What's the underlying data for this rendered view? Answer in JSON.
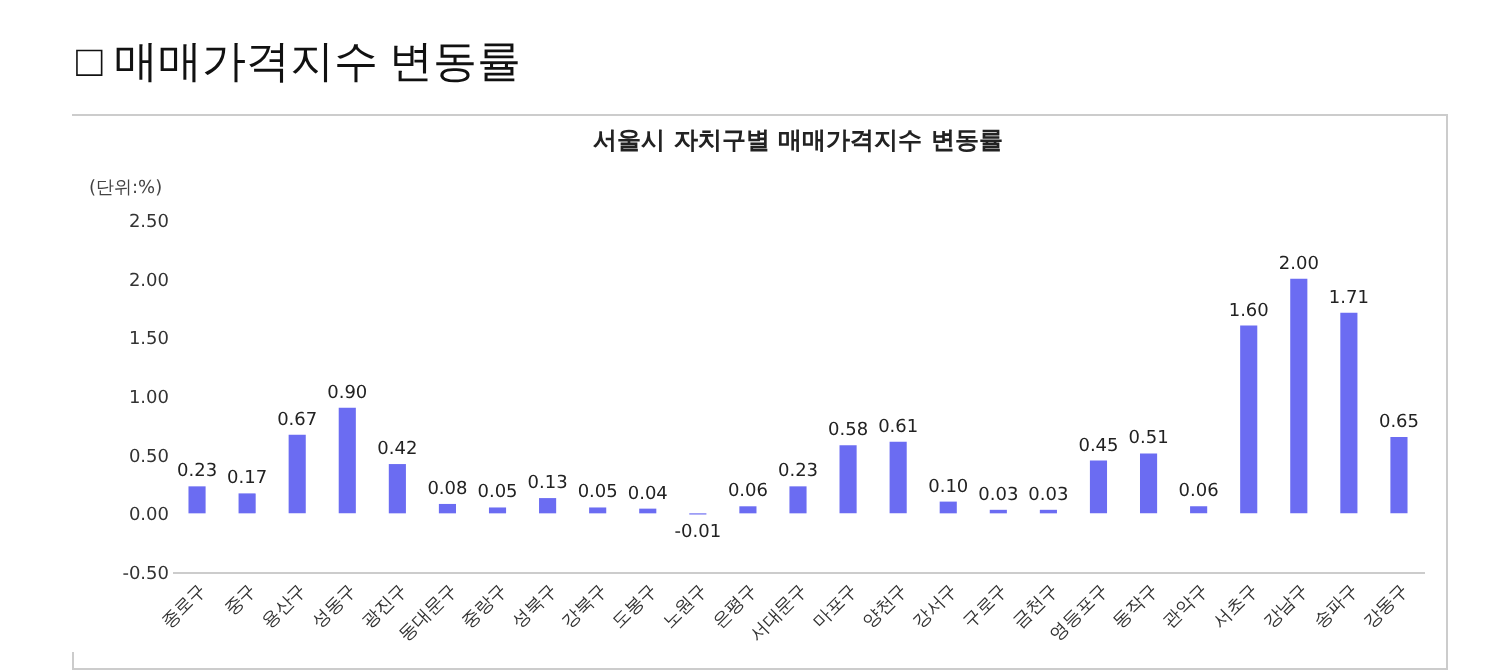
{
  "chart_data": {
    "type": "bar",
    "title": "□ 매매가격지수 변동률",
    "subtitle": "서울시 자치구별 매매가격지수 변동률",
    "ylabel": "(단위:%)",
    "categories": [
      "종로구",
      "중구",
      "용산구",
      "성동구",
      "광진구",
      "동대문구",
      "중랑구",
      "성북구",
      "강북구",
      "도봉구",
      "노원구",
      "은평구",
      "서대문구",
      "마포구",
      "양천구",
      "강서구",
      "구로구",
      "금천구",
      "영등포구",
      "동작구",
      "관악구",
      "서초구",
      "강남구",
      "송파구",
      "강동구"
    ],
    "values": [
      0.23,
      0.17,
      0.67,
      0.9,
      0.42,
      0.08,
      0.05,
      0.13,
      0.05,
      0.04,
      -0.01,
      0.06,
      0.23,
      0.58,
      0.61,
      0.1,
      0.03,
      0.03,
      0.45,
      0.51,
      0.06,
      1.6,
      2.0,
      1.71,
      0.65
    ],
    "value_labels": [
      "0.23",
      "0.17",
      "0.67",
      "0.90",
      "0.42",
      "0.08",
      "0.05",
      "0.13",
      "0.05",
      "0.04",
      "-0.01",
      "0.06",
      "0.23",
      "0.58",
      "0.61",
      "0.10",
      "0.03",
      "0.03",
      "0.45",
      "0.51",
      "0.06",
      "1.60",
      "2.00",
      "1.71",
      "0.65"
    ],
    "color": "#6b6cf2",
    "ylim": [
      -0.5,
      2.5
    ],
    "yticks": [
      {
        "value": -0.5,
        "label": "-0.50"
      },
      {
        "value": 0,
        "label": "0.00"
      },
      {
        "value": 0.5,
        "label": "0.50"
      },
      {
        "value": 1,
        "label": "1.00"
      },
      {
        "value": 1.5,
        "label": "1.50"
      },
      {
        "value": 2,
        "label": "2.00"
      },
      {
        "value": 2.5,
        "label": "2.50"
      }
    ]
  }
}
